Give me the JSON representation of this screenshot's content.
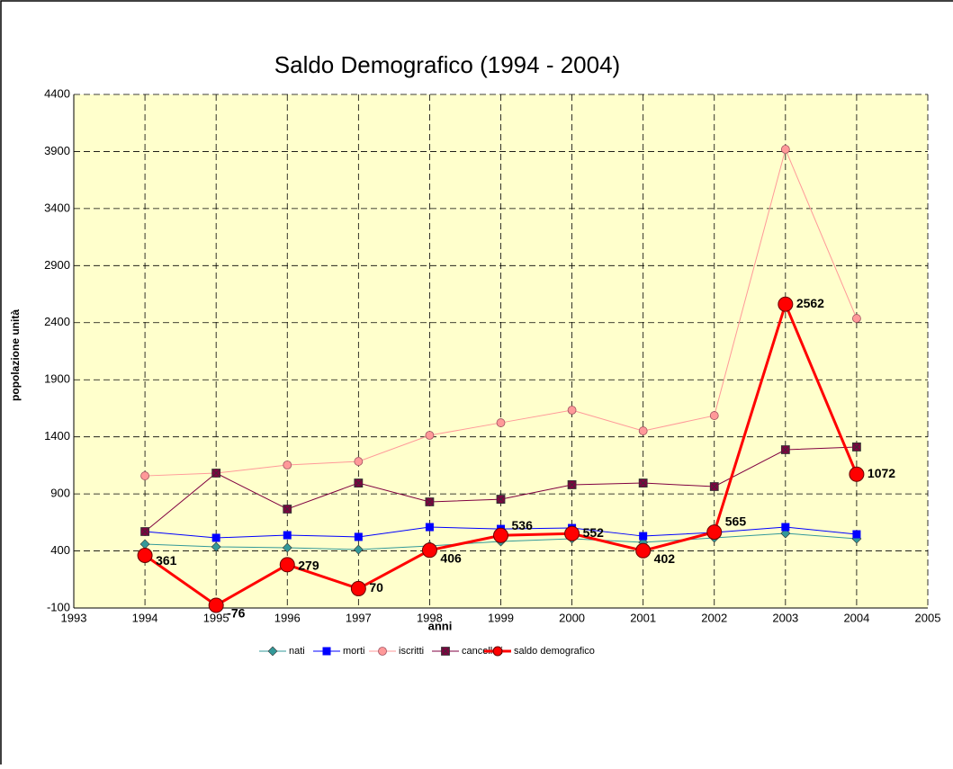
{
  "chart_data": {
    "type": "line",
    "title": "Saldo Demografico (1994 - 2004)",
    "xlabel": "anni",
    "ylabel": "popolazione unità",
    "x": [
      1994,
      1995,
      1996,
      1997,
      1998,
      1999,
      2000,
      2001,
      2002,
      2003,
      2004
    ],
    "xlim": [
      1993,
      2005
    ],
    "xticks": [
      1993,
      1994,
      1995,
      1996,
      1997,
      1998,
      1999,
      2000,
      2001,
      2002,
      2003,
      2004,
      2005
    ],
    "ylim": [
      -100,
      4400
    ],
    "yticks": [
      -100,
      400,
      900,
      1400,
      1900,
      2400,
      2900,
      3400,
      3900,
      4400
    ],
    "grid": true,
    "legend": "bottom",
    "series": [
      {
        "name": "nati",
        "color": "#339999",
        "marker": "diamond",
        "values": [
          460,
          436,
          428,
          412,
          444,
          483,
          507,
          475,
          515,
          554,
          507
        ]
      },
      {
        "name": "morti",
        "color": "#0000ff",
        "marker": "square",
        "values": [
          570,
          515,
          538,
          523,
          609,
          593,
          601,
          530,
          562,
          609,
          546
        ]
      },
      {
        "name": "iscritti",
        "color": "#ff9999",
        "marker": "circle",
        "values": [
          1058,
          1082,
          1153,
          1184,
          1413,
          1523,
          1634,
          1452,
          1586,
          3919,
          2437
        ]
      },
      {
        "name": "cancellati",
        "color": "#800040",
        "marker": "xsquare",
        "values": [
          570,
          1082,
          767,
          995,
          830,
          853,
          980,
          995,
          964,
          1287,
          1311
        ]
      },
      {
        "name": "saldo demografico",
        "color": "#ff0000",
        "marker": "bigcircle",
        "labels": true,
        "values": [
          361,
          -76,
          279,
          70,
          406,
          536,
          552,
          402,
          565,
          2562,
          1072
        ]
      }
    ]
  }
}
